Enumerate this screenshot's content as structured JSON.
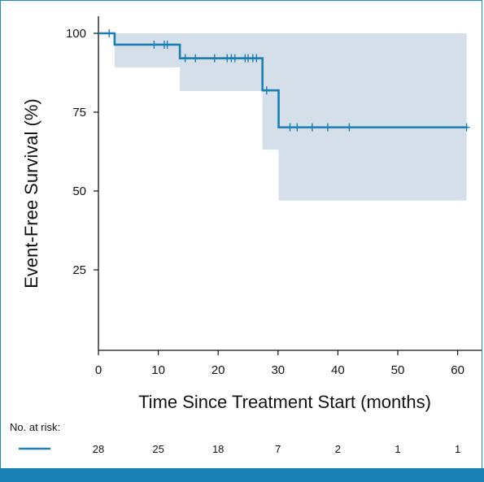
{
  "chart_data": {
    "type": "line",
    "title": "",
    "xlabel": "Time Since Treatment Start (months)",
    "ylabel": "Event-Free Survival (%)",
    "xlim": [
      0,
      63
    ],
    "ylim": [
      0,
      102
    ],
    "x_ticks": [
      0,
      10,
      20,
      30,
      40,
      50,
      60
    ],
    "y_ticks": [
      25,
      50,
      75,
      100
    ],
    "grid": false,
    "colors": {
      "line": "#1a7fb2",
      "ci_band": "#d5dfea",
      "axis": "#111111"
    },
    "series": [
      {
        "steps": [
          {
            "x": 0,
            "y": 100
          },
          {
            "x": 2.7,
            "y": 96.4
          },
          {
            "x": 13.6,
            "y": 92.1
          },
          {
            "x": 27.4,
            "y": 81.9
          },
          {
            "x": 30.1,
            "y": 70.2
          },
          {
            "x": 61.5,
            "y": 70.2
          }
        ],
        "censor_marks": [
          {
            "x": 1.8,
            "y": 100
          },
          {
            "x": 9.3,
            "y": 96.4
          },
          {
            "x": 11.0,
            "y": 96.4
          },
          {
            "x": 11.5,
            "y": 96.4
          },
          {
            "x": 14.5,
            "y": 92.1
          },
          {
            "x": 16.2,
            "y": 92.1
          },
          {
            "x": 19.4,
            "y": 92.1
          },
          {
            "x": 21.5,
            "y": 92.1
          },
          {
            "x": 22.2,
            "y": 92.1
          },
          {
            "x": 22.8,
            "y": 92.1
          },
          {
            "x": 24.5,
            "y": 92.1
          },
          {
            "x": 25.0,
            "y": 92.1
          },
          {
            "x": 25.8,
            "y": 92.1
          },
          {
            "x": 26.4,
            "y": 92.1
          },
          {
            "x": 28.1,
            "y": 81.9
          },
          {
            "x": 32.0,
            "y": 70.2
          },
          {
            "x": 33.2,
            "y": 70.2
          },
          {
            "x": 35.7,
            "y": 70.2
          },
          {
            "x": 38.3,
            "y": 70.2
          },
          {
            "x": 41.9,
            "y": 70.2
          },
          {
            "x": 61.5,
            "y": 70.2
          }
        ],
        "ci_upper": [
          {
            "x": 2.7,
            "y": 100
          },
          {
            "x": 61.5,
            "y": 100
          }
        ],
        "ci_lower": [
          {
            "x": 2.7,
            "y": 89.2
          },
          {
            "x": 13.6,
            "y": 81.7
          },
          {
            "x": 27.4,
            "y": 63.1
          },
          {
            "x": 30.1,
            "y": 47.0
          },
          {
            "x": 61.5,
            "y": 47.0
          }
        ]
      }
    ],
    "risk_table": {
      "label": "No. at risk:",
      "values": [
        "28",
        "25",
        "18",
        "7",
        "2",
        "1",
        "1"
      ]
    }
  }
}
